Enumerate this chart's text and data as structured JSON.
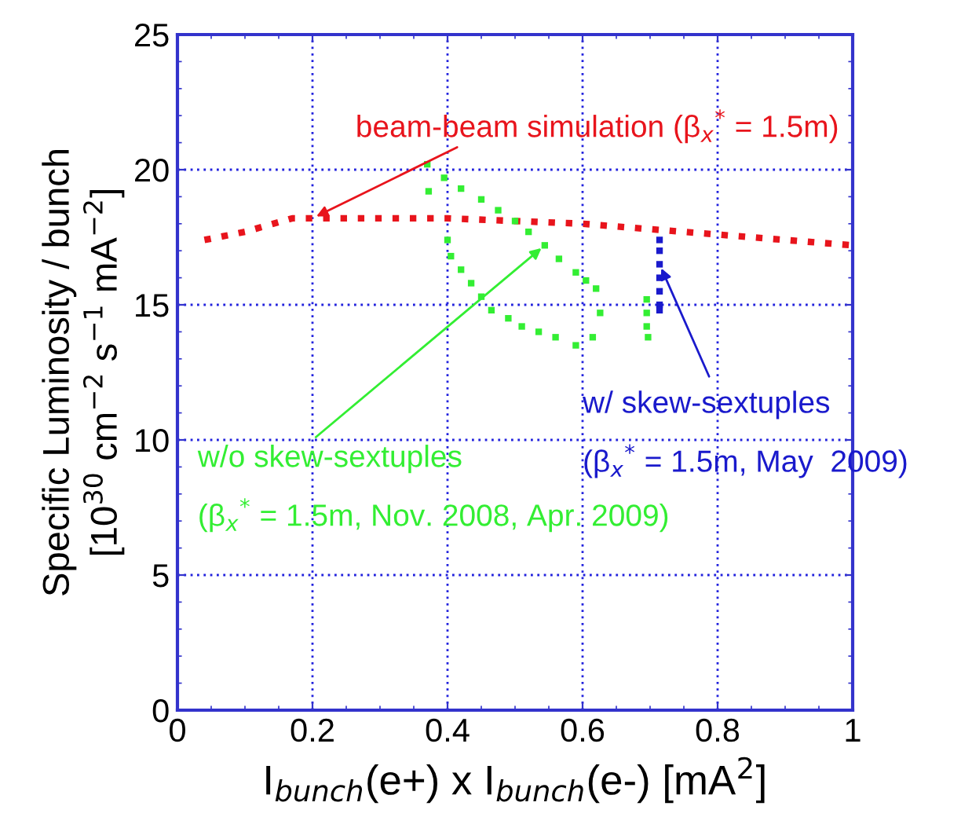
{
  "chart_data": {
    "type": "scatter",
    "xlabel": "I$_{bunch}$(e+) x I$_{bunch}$(e-) [mA$^{2}$]",
    "ylabel": "Specific Luminosity / bunch\n[10$^{30}$ cm$^{−2}$ s$^{−1}$ mA$^{−2}$]",
    "xlim": [
      0,
      1
    ],
    "ylim": [
      0,
      25
    ],
    "xticks": [
      0,
      0.2,
      0.4,
      0.6,
      0.8,
      1
    ],
    "yticks": [
      0,
      5,
      10,
      15,
      20,
      25
    ],
    "grid": true,
    "legend": false,
    "series": [
      {
        "type": "line",
        "line_style": "dotted",
        "marker": "none",
        "color": "#e8141c",
        "x": [
          0.04,
          0.1,
          0.17,
          0.2,
          0.3,
          0.4,
          0.5,
          0.6,
          0.7,
          0.8,
          0.9,
          1.0
        ],
        "values": [
          17.4,
          17.7,
          18.2,
          18.2,
          18.2,
          18.2,
          18.1,
          18.0,
          17.8,
          17.6,
          17.4,
          17.2
        ]
      },
      {
        "marker": "square",
        "color": "#33ee33",
        "x": [
          0.37,
          0.372,
          0.395,
          0.42,
          0.45,
          0.475,
          0.5,
          0.52,
          0.544,
          0.565,
          0.59,
          0.605,
          0.62,
          0.626,
          0.4,
          0.405,
          0.42,
          0.435,
          0.45,
          0.465,
          0.49,
          0.51,
          0.535,
          0.56,
          0.59,
          0.615,
          0.695,
          0.695,
          0.695,
          0.697
        ],
        "values": [
          20.2,
          19.2,
          19.7,
          19.3,
          18.9,
          18.5,
          18.1,
          17.7,
          17.2,
          16.7,
          16.2,
          15.9,
          15.6,
          14.7,
          17.4,
          16.8,
          16.3,
          15.8,
          15.3,
          14.8,
          14.5,
          14.2,
          14.0,
          13.8,
          13.5,
          13.8,
          15.2,
          14.7,
          14.2,
          13.8
        ]
      },
      {
        "marker": "square",
        "color": "#1a1acc",
        "x": [
          0.714,
          0.714,
          0.714,
          0.714,
          0.714,
          0.714,
          0.714
        ],
        "values": [
          17.4,
          17.0,
          16.5,
          16.0,
          15.5,
          15.0,
          14.8
        ]
      }
    ],
    "annotations": [
      {
        "text": "beam-beam simulation (β$_{x}$$^{*}$ = 1.5m)",
        "x": 0.2,
        "y": 18.2
      },
      {
        "text": "w/o skew-sextuples\n(β$_{x}$$^{*}$ = 1.5m, Nov. 2008, Apr. 2009)",
        "x": 0.544,
        "y": 17.2
      },
      {
        "text": "w/ skew-sextuples\n(β$_{x}$$^{*}$ = 1.5m, May  2009)",
        "x": 0.714,
        "y": 16.5
      }
    ]
  }
}
